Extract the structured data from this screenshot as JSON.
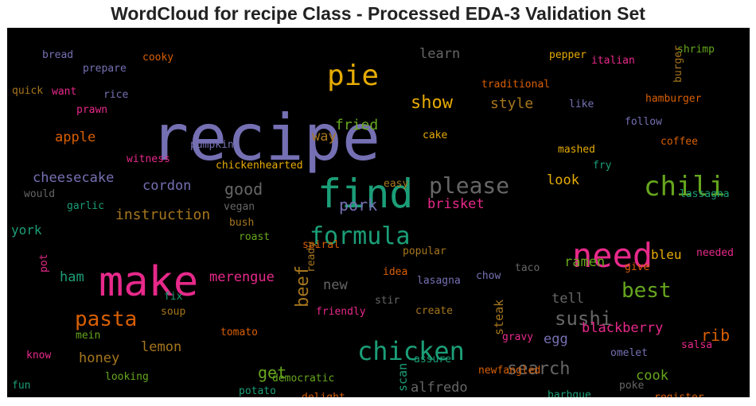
{
  "chart_data": {
    "type": "wordcloud",
    "title": "WordCloud for recipe Class - Processed EDA-3 Validation Set",
    "background": "#000000",
    "palette": [
      "#7570b3",
      "#1b9e77",
      "#d95f02",
      "#e7298a",
      "#66a61e",
      "#e6ab02",
      "#a6761d",
      "#666666"
    ],
    "words": [
      {
        "text": "recipe",
        "weight": 100,
        "color": "#7570b3"
      },
      {
        "text": "make",
        "weight": 72,
        "color": "#e7298a"
      },
      {
        "text": "find",
        "weight": 68,
        "color": "#1b9e77"
      },
      {
        "text": "need",
        "weight": 60,
        "color": "#e7298a"
      },
      {
        "text": "pie",
        "weight": 52,
        "color": "#e6ab02"
      },
      {
        "text": "chili",
        "weight": 50,
        "color": "#66a61e"
      },
      {
        "text": "chicken",
        "weight": 48,
        "color": "#1b9e77"
      },
      {
        "text": "formula",
        "weight": 46,
        "color": "#1b9e77"
      },
      {
        "text": "please",
        "weight": 44,
        "color": "#666666"
      },
      {
        "text": "pasta",
        "weight": 40,
        "color": "#d95f02"
      },
      {
        "text": "best",
        "weight": 38,
        "color": "#66a61e"
      },
      {
        "text": "search",
        "weight": 34,
        "color": "#666666"
      },
      {
        "text": "sushi",
        "weight": 32,
        "color": "#666666"
      },
      {
        "text": "beef",
        "weight": 32,
        "color": "#a6761d"
      },
      {
        "text": "show",
        "weight": 30,
        "color": "#e6ab02"
      },
      {
        "text": "good",
        "weight": 30,
        "color": "#666666"
      },
      {
        "text": "pork",
        "weight": 30,
        "color": "#7570b3"
      },
      {
        "text": "get",
        "weight": 30,
        "color": "#66a61e"
      },
      {
        "text": "rib",
        "weight": 30,
        "color": "#d95f02"
      },
      {
        "text": "instruction",
        "weight": 26,
        "color": "#a6761d"
      },
      {
        "text": "blackberry",
        "weight": 26,
        "color": "#e7298a"
      },
      {
        "text": "cheesecake",
        "weight": 26,
        "color": "#7570b3"
      },
      {
        "text": "style",
        "weight": 24,
        "color": "#a6761d"
      },
      {
        "text": "learn",
        "weight": 24,
        "color": "#666666"
      },
      {
        "text": "fried",
        "weight": 24,
        "color": "#66a61e"
      },
      {
        "text": "apple",
        "weight": 24,
        "color": "#d95f02"
      },
      {
        "text": "cordon",
        "weight": 24,
        "color": "#7570b3"
      },
      {
        "text": "look",
        "weight": 24,
        "color": "#e6ab02"
      },
      {
        "text": "brisket",
        "weight": 24,
        "color": "#e7298a"
      },
      {
        "text": "bleu",
        "weight": 24,
        "color": "#e6ab02"
      },
      {
        "text": "ramen",
        "weight": 24,
        "color": "#66a61e"
      },
      {
        "text": "merengue",
        "weight": 24,
        "color": "#e7298a"
      },
      {
        "text": "ham",
        "weight": 24,
        "color": "#1b9e77"
      },
      {
        "text": "lemon",
        "weight": 24,
        "color": "#a6761d"
      },
      {
        "text": "honey",
        "weight": 24,
        "color": "#a6761d"
      },
      {
        "text": "alfredo",
        "weight": 24,
        "color": "#666666"
      },
      {
        "text": "cook",
        "weight": 24,
        "color": "#66a61e"
      },
      {
        "text": "egg",
        "weight": 24,
        "color": "#7570b3"
      },
      {
        "text": "tell",
        "weight": 24,
        "color": "#666666"
      },
      {
        "text": "new",
        "weight": 24,
        "color": "#666666"
      },
      {
        "text": "way",
        "weight": 24,
        "color": "#a6761d"
      },
      {
        "text": "york",
        "weight": 22,
        "color": "#1b9e77"
      },
      {
        "text": "scan",
        "weight": 22,
        "color": "#1b9e77"
      },
      {
        "text": "steak",
        "weight": 22,
        "color": "#a6761d"
      },
      {
        "text": "mashed",
        "weight": 18,
        "color": "#e6ab02"
      },
      {
        "text": "coffee",
        "weight": 18,
        "color": "#d95f02"
      },
      {
        "text": "hamburger",
        "weight": 18,
        "color": "#d95f02"
      },
      {
        "text": "traditional",
        "weight": 18,
        "color": "#d95f02"
      },
      {
        "text": "pepper",
        "weight": 18,
        "color": "#e6ab02"
      },
      {
        "text": "italian",
        "weight": 18,
        "color": "#e7298a"
      },
      {
        "text": "shrimp",
        "weight": 18,
        "color": "#66a61e"
      },
      {
        "text": "follow",
        "weight": 18,
        "color": "#7570b3"
      },
      {
        "text": "like",
        "weight": 18,
        "color": "#7570b3"
      },
      {
        "text": "cake",
        "weight": 18,
        "color": "#e6ab02"
      },
      {
        "text": "pumpkin",
        "weight": 18,
        "color": "#7570b3"
      },
      {
        "text": "chickenhearted",
        "weight": 18,
        "color": "#e6ab02"
      },
      {
        "text": "witness",
        "weight": 18,
        "color": "#e7298a"
      },
      {
        "text": "bread",
        "weight": 18,
        "color": "#7570b3"
      },
      {
        "text": "prepare",
        "weight": 18,
        "color": "#7570b3"
      },
      {
        "text": "cooky",
        "weight": 18,
        "color": "#d95f02"
      },
      {
        "text": "quick",
        "weight": 18,
        "color": "#a6761d"
      },
      {
        "text": "want",
        "weight": 18,
        "color": "#e7298a"
      },
      {
        "text": "rice",
        "weight": 18,
        "color": "#7570b3"
      },
      {
        "text": "prawn",
        "weight": 18,
        "color": "#e7298a"
      },
      {
        "text": "burger",
        "weight": 18,
        "color": "#a6761d"
      },
      {
        "text": "fry",
        "weight": 18,
        "color": "#1b9e77"
      },
      {
        "text": "easy",
        "weight": 18,
        "color": "#a6761d"
      },
      {
        "text": "would",
        "weight": 18,
        "color": "#666666"
      },
      {
        "text": "garlic",
        "weight": 18,
        "color": "#1b9e77"
      },
      {
        "text": "vegan",
        "weight": 18,
        "color": "#666666"
      },
      {
        "text": "bush",
        "weight": 18,
        "color": "#a6761d"
      },
      {
        "text": "roast",
        "weight": 18,
        "color": "#66a61e"
      },
      {
        "text": "spiral",
        "weight": 18,
        "color": "#d95f02"
      },
      {
        "text": "lassagna",
        "weight": 18,
        "color": "#1b9e77"
      },
      {
        "text": "popular",
        "weight": 18,
        "color": "#a6761d"
      },
      {
        "text": "needed",
        "weight": 18,
        "color": "#e7298a"
      },
      {
        "text": "give",
        "weight": 18,
        "color": "#d95f02"
      },
      {
        "text": "taco",
        "weight": 18,
        "color": "#666666"
      },
      {
        "text": "chow",
        "weight": 18,
        "color": "#7570b3"
      },
      {
        "text": "lasagna",
        "weight": 18,
        "color": "#7570b3"
      },
      {
        "text": "idea",
        "weight": 18,
        "color": "#d95f02"
      },
      {
        "text": "ready",
        "weight": 18,
        "color": "#a6761d"
      },
      {
        "text": "pot",
        "weight": 18,
        "color": "#e7298a"
      },
      {
        "text": "fix",
        "weight": 18,
        "color": "#1b9e77"
      },
      {
        "text": "soup",
        "weight": 18,
        "color": "#a6761d"
      },
      {
        "text": "stir",
        "weight": 18,
        "color": "#666666"
      },
      {
        "text": "friendly",
        "weight": 18,
        "color": "#e7298a"
      },
      {
        "text": "create",
        "weight": 18,
        "color": "#a6761d"
      },
      {
        "text": "gravy",
        "weight": 18,
        "color": "#e7298a"
      },
      {
        "text": "salsa",
        "weight": 18,
        "color": "#e7298a"
      },
      {
        "text": "mein",
        "weight": 18,
        "color": "#66a61e"
      },
      {
        "text": "tomato",
        "weight": 18,
        "color": "#d95f02"
      },
      {
        "text": "know",
        "weight": 18,
        "color": "#e7298a"
      },
      {
        "text": "assure",
        "weight": 18,
        "color": "#1b9e77"
      },
      {
        "text": "omelet",
        "weight": 18,
        "color": "#7570b3"
      },
      {
        "text": "looking",
        "weight": 18,
        "color": "#66a61e"
      },
      {
        "text": "democratic",
        "weight": 18,
        "color": "#66a61e"
      },
      {
        "text": "newfangled",
        "weight": 18,
        "color": "#d95f02"
      },
      {
        "text": "poke",
        "weight": 18,
        "color": "#666666"
      },
      {
        "text": "fun",
        "weight": 18,
        "color": "#1b9e77"
      },
      {
        "text": "potato",
        "weight": 18,
        "color": "#1b9e77"
      },
      {
        "text": "delight",
        "weight": 18,
        "color": "#d95f02"
      },
      {
        "text": "barbque",
        "weight": 18,
        "color": "#1b9e77"
      },
      {
        "text": "register",
        "weight": 18,
        "color": "#d95f02"
      }
    ]
  }
}
